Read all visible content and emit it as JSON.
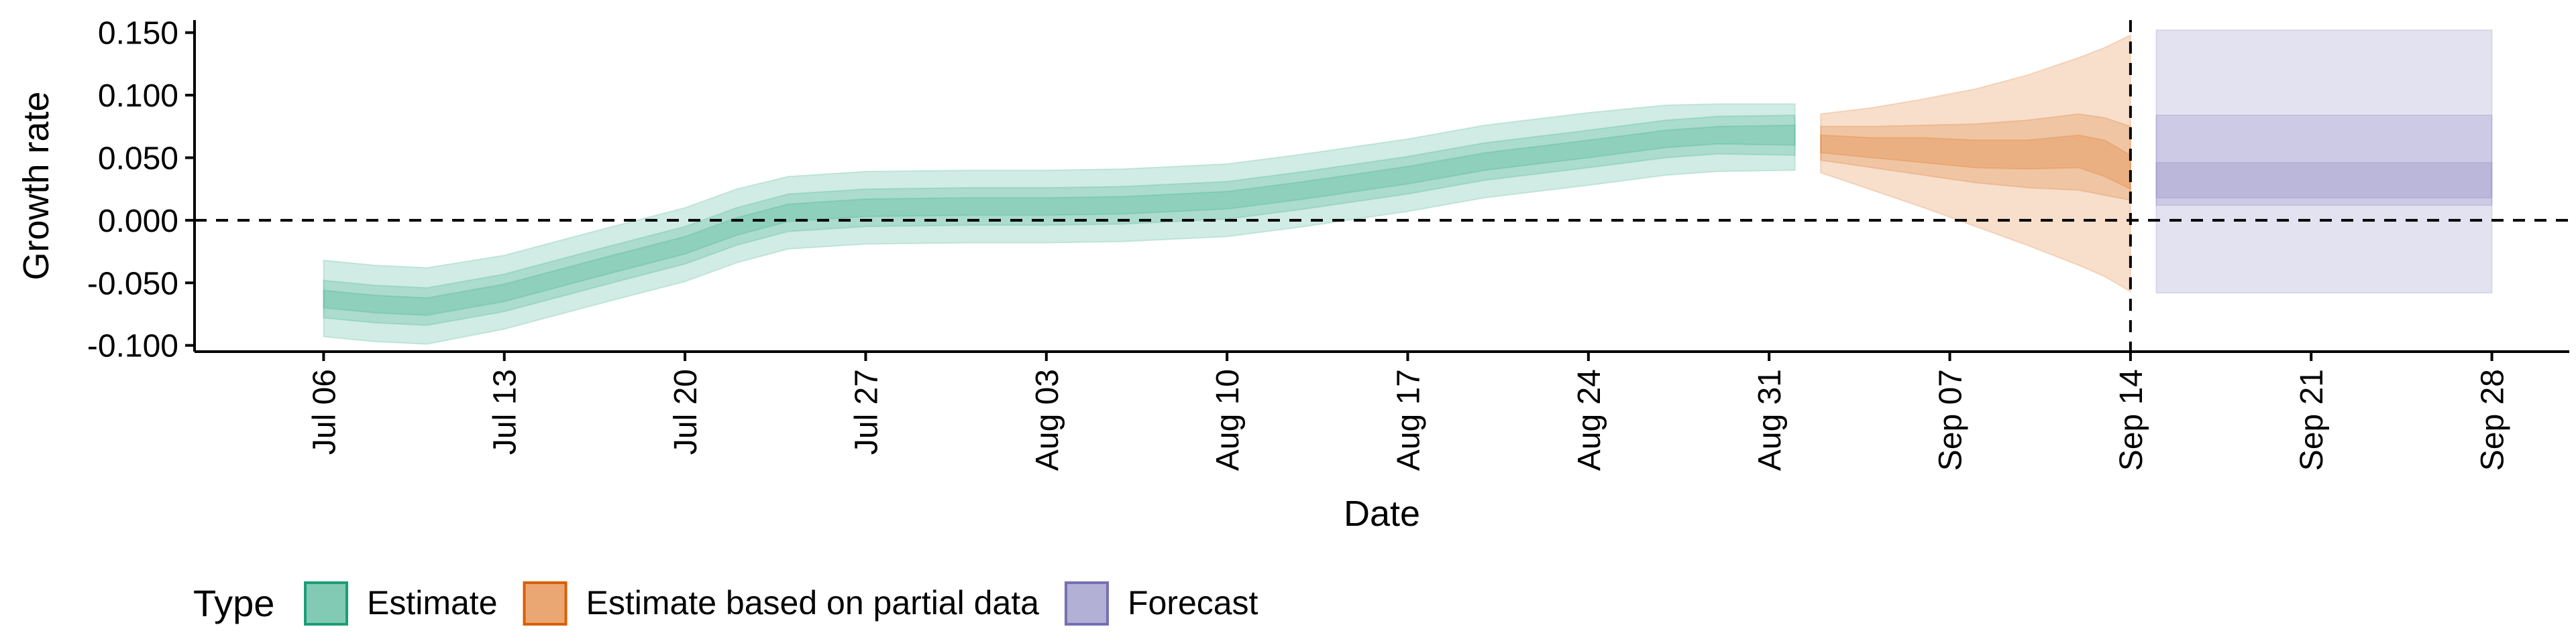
{
  "chart_data": {
    "type": "area",
    "xlabel": "Date",
    "ylabel": "Growth rate",
    "ylim": [
      -0.105,
      0.16
    ],
    "xlim": [
      "2020-07-01",
      "2020-10-01"
    ],
    "grid": false,
    "y_ticks": [
      -0.1,
      -0.05,
      0.0,
      0.05,
      0.1,
      0.15
    ],
    "y_tick_labels": [
      "-0.100",
      "-0.050",
      "0.000",
      "0.050",
      "0.100",
      "0.150"
    ],
    "x_ticks": [
      "2020-07-06",
      "2020-07-13",
      "2020-07-20",
      "2020-07-27",
      "2020-08-03",
      "2020-08-10",
      "2020-08-17",
      "2020-08-24",
      "2020-08-31",
      "2020-09-07",
      "2020-09-14",
      "2020-09-21",
      "2020-09-28"
    ],
    "x_tick_labels": [
      "Jul 06",
      "Jul 13",
      "Jul 20",
      "Jul 27",
      "Aug 03",
      "Aug 10",
      "Aug 17",
      "Aug 24",
      "Aug 31",
      "Sep 07",
      "Sep 14",
      "Sep 21",
      "Sep 28"
    ],
    "reference_lines": [
      {
        "orientation": "horizontal",
        "y": 0.0,
        "style": "dashed"
      },
      {
        "orientation": "vertical",
        "x": "2020-09-14",
        "style": "dashed"
      }
    ],
    "legend": {
      "position": "bottom",
      "title": "Type",
      "entries": [
        {
          "label": "Estimate",
          "color": "#1b9e77"
        },
        {
          "label": "Estimate based on partial data",
          "color": "#d95f02"
        },
        {
          "label": "Forecast",
          "color": "#7570b3"
        }
      ]
    },
    "series": [
      {
        "name": "Estimate",
        "color": "#1b9e77",
        "x": [
          "2020-07-06",
          "2020-07-08",
          "2020-07-10",
          "2020-07-13",
          "2020-07-15",
          "2020-07-17",
          "2020-07-20",
          "2020-07-22",
          "2020-07-24",
          "2020-07-27",
          "2020-07-31",
          "2020-08-03",
          "2020-08-06",
          "2020-08-10",
          "2020-08-13",
          "2020-08-17",
          "2020-08-20",
          "2020-08-24",
          "2020-08-27",
          "2020-08-29",
          "2020-09-01"
        ],
        "median": [
          -0.063,
          -0.067,
          -0.069,
          -0.058,
          -0.047,
          -0.036,
          -0.02,
          -0.005,
          0.006,
          0.01,
          0.011,
          0.011,
          0.012,
          0.016,
          0.024,
          0.036,
          0.047,
          0.057,
          0.065,
          0.068,
          0.068
        ],
        "lower_20": [
          -0.07,
          -0.074,
          -0.076,
          -0.065,
          -0.054,
          -0.043,
          -0.027,
          -0.012,
          -0.001,
          0.003,
          0.004,
          0.004,
          0.005,
          0.009,
          0.017,
          0.029,
          0.04,
          0.05,
          0.058,
          0.061,
          0.06
        ],
        "upper_20": [
          -0.056,
          -0.06,
          -0.062,
          -0.051,
          -0.04,
          -0.029,
          -0.013,
          0.002,
          0.013,
          0.017,
          0.018,
          0.018,
          0.019,
          0.023,
          0.031,
          0.043,
          0.054,
          0.064,
          0.072,
          0.075,
          0.076
        ],
        "lower_50": [
          -0.078,
          -0.082,
          -0.084,
          -0.073,
          -0.062,
          -0.051,
          -0.035,
          -0.02,
          -0.009,
          -0.005,
          -0.004,
          -0.004,
          -0.003,
          0.001,
          0.009,
          0.021,
          0.032,
          0.042,
          0.05,
          0.053,
          0.052
        ],
        "upper_50": [
          -0.048,
          -0.052,
          -0.054,
          -0.043,
          -0.032,
          -0.021,
          -0.005,
          0.01,
          0.021,
          0.025,
          0.026,
          0.026,
          0.027,
          0.031,
          0.039,
          0.051,
          0.062,
          0.072,
          0.08,
          0.083,
          0.084
        ],
        "lower_90": [
          -0.093,
          -0.097,
          -0.099,
          -0.087,
          -0.076,
          -0.065,
          -0.049,
          -0.034,
          -0.023,
          -0.019,
          -0.018,
          -0.018,
          -0.017,
          -0.013,
          -0.005,
          0.007,
          0.018,
          0.028,
          0.036,
          0.039,
          0.04
        ],
        "upper_90": [
          -0.032,
          -0.036,
          -0.038,
          -0.028,
          -0.017,
          -0.006,
          0.01,
          0.025,
          0.035,
          0.039,
          0.04,
          0.04,
          0.041,
          0.045,
          0.053,
          0.065,
          0.076,
          0.086,
          0.092,
          0.093,
          0.093
        ]
      },
      {
        "name": "Estimate based on partial data",
        "color": "#d95f02",
        "x": [
          "2020-09-02",
          "2020-09-04",
          "2020-09-06",
          "2020-09-08",
          "2020-09-10",
          "2020-09-12",
          "2020-09-13",
          "2020-09-14"
        ],
        "median": [
          0.061,
          0.058,
          0.056,
          0.053,
          0.052,
          0.055,
          0.05,
          0.038
        ],
        "lower_20": [
          0.054,
          0.05,
          0.046,
          0.042,
          0.041,
          0.042,
          0.035,
          0.025
        ],
        "upper_20": [
          0.068,
          0.066,
          0.066,
          0.064,
          0.064,
          0.068,
          0.064,
          0.052
        ],
        "lower_50": [
          0.048,
          0.042,
          0.036,
          0.03,
          0.026,
          0.024,
          0.02,
          0.016
        ],
        "upper_50": [
          0.075,
          0.075,
          0.076,
          0.077,
          0.08,
          0.085,
          0.082,
          0.075
        ],
        "lower_90": [
          0.038,
          0.024,
          0.01,
          -0.005,
          -0.02,
          -0.036,
          -0.045,
          -0.057
        ],
        "upper_90": [
          0.085,
          0.09,
          0.097,
          0.105,
          0.116,
          0.13,
          0.138,
          0.148
        ]
      },
      {
        "name": "Forecast",
        "color": "#7570b3",
        "x": [
          "2020-09-15",
          "2020-09-28"
        ],
        "median": [
          0.03,
          0.03
        ],
        "lower_20": [
          0.018,
          0.018
        ],
        "upper_20": [
          0.046,
          0.046
        ],
        "lower_50": [
          0.012,
          0.012
        ],
        "upper_50": [
          0.084,
          0.084
        ],
        "lower_90": [
          -0.058,
          -0.058
        ],
        "upper_90": [
          0.152,
          0.152
        ]
      }
    ]
  }
}
